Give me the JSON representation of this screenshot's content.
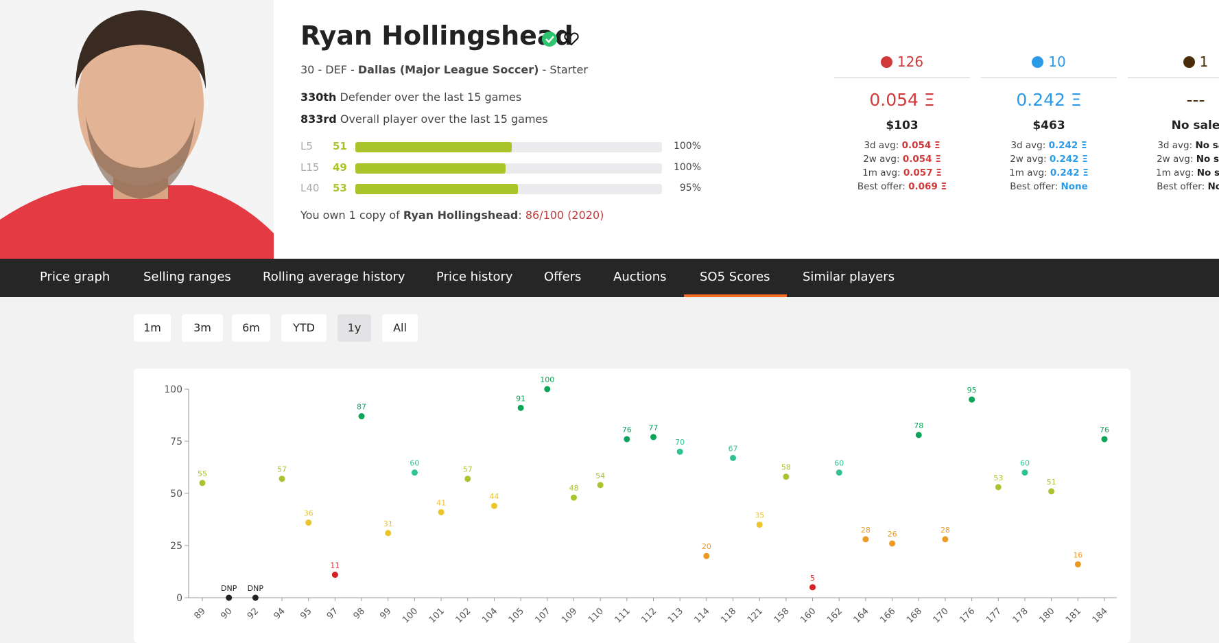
{
  "header": {
    "name": "Ryan Hollingshead",
    "age_position": "30 - DEF -",
    "club": "Dallas (Major League Soccer)",
    "role": "- Starter",
    "ranks": [
      {
        "rank": "330th",
        "text": "Defender over the last 15 games"
      },
      {
        "rank": "833rd",
        "text": "Overall player over the last 15 games"
      }
    ],
    "stats": {
      "bar_range": [
        0,
        100
      ],
      "color": "#a9c52a",
      "rows": [
        {
          "label": "L5",
          "score": 51,
          "pct": "100%"
        },
        {
          "label": "L15",
          "score": 49,
          "pct": "100%"
        },
        {
          "label": "L40",
          "score": 53,
          "pct": "95%"
        }
      ]
    },
    "own": {
      "prefix": "You own 1 copy of",
      "name": "Ryan Hollingshead",
      "sep": ":",
      "card": "86/100 (2020)"
    }
  },
  "prices": [
    {
      "color": "#d03a3a",
      "count": 126,
      "price": "0.054 Ξ",
      "usd": "$103",
      "avgs": [
        {
          "label": "3d avg:",
          "value": "0.054 Ξ"
        },
        {
          "label": "2w avg:",
          "value": "0.054 Ξ"
        },
        {
          "label": "1m avg:",
          "value": "0.057 Ξ"
        },
        {
          "label": "Best offer:",
          "value": "0.069 Ξ"
        }
      ]
    },
    {
      "color": "#2b9be8",
      "count": 10,
      "price": "0.242 Ξ",
      "usd": "$463",
      "avgs": [
        {
          "label": "3d avg:",
          "value": "0.242 Ξ"
        },
        {
          "label": "2w avg:",
          "value": "0.242 Ξ"
        },
        {
          "label": "1m avg:",
          "value": "0.242 Ξ"
        },
        {
          "label": "Best offer:",
          "value": "None"
        }
      ]
    },
    {
      "color": "#4a2c0a",
      "count": 1,
      "price": "---",
      "usd": "No sale",
      "avgs": [
        {
          "label": "3d avg:",
          "value": "No sale"
        },
        {
          "label": "2w avg:",
          "value": "No sale"
        },
        {
          "label": "1m avg:",
          "value": "No sale"
        },
        {
          "label": "Best offer:",
          "value": "None"
        }
      ]
    }
  ],
  "tabs": {
    "items": [
      "Price graph",
      "Selling ranges",
      "Rolling average history",
      "Price history",
      "Offers",
      "Auctions",
      "SO5 Scores",
      "Similar players"
    ],
    "active": 6
  },
  "ranges": {
    "items": [
      "1m",
      "3m",
      "6m",
      "YTD",
      "1y",
      "All"
    ],
    "active": 4
  },
  "chart_data": {
    "type": "scatter",
    "categories": [
      "89",
      "90",
      "92",
      "94",
      "95",
      "97",
      "98",
      "99",
      "100",
      "101",
      "102",
      "104",
      "105",
      "107",
      "109",
      "110",
      "111",
      "112",
      "113",
      "114",
      "118",
      "121",
      "158",
      "160",
      "162",
      "164",
      "166",
      "168",
      "170",
      "176",
      "177",
      "178",
      "180",
      "181",
      "184"
    ],
    "values": [
      55,
      null,
      null,
      57,
      36,
      11,
      87,
      31,
      60,
      41,
      57,
      44,
      91,
      100,
      48,
      54,
      76,
      77,
      70,
      20,
      67,
      35,
      58,
      5,
      60,
      28,
      26,
      78,
      28,
      95,
      53,
      60,
      51,
      16,
      76
    ],
    "value_labels": [
      null,
      "DNP",
      "DNP",
      null,
      null,
      null,
      null,
      null,
      null,
      null,
      null,
      null,
      null,
      null,
      null,
      null,
      null,
      null,
      null,
      null,
      null,
      null,
      null,
      null,
      null,
      null,
      null,
      null,
      null,
      null,
      null,
      null,
      null,
      null,
      null
    ],
    "colors": [
      "#a8c42e",
      "#222222",
      "#222222",
      "#a8c42e",
      "#ecc52a",
      "#d42020",
      "#0ca55a",
      "#ecc52a",
      "#2ec48e",
      "#ecc52a",
      "#a8c42e",
      "#ecc52a",
      "#0ca55a",
      "#0ca55a",
      "#a8c42e",
      "#a8c42e",
      "#0ca55a",
      "#0ca55a",
      "#2ec48e",
      "#ec9a22",
      "#2ec48e",
      "#ecc52a",
      "#a8c42e",
      "#d42020",
      "#2ec48e",
      "#ec9a22",
      "#ec9a22",
      "#0ca55a",
      "#ec9a22",
      "#0ca55a",
      "#a8c42e",
      "#2ec48e",
      "#a8c42e",
      "#ec9a22",
      "#0ca55a"
    ],
    "ylim": [
      0,
      100
    ],
    "yticks": [
      0,
      25,
      50,
      75,
      100
    ]
  }
}
